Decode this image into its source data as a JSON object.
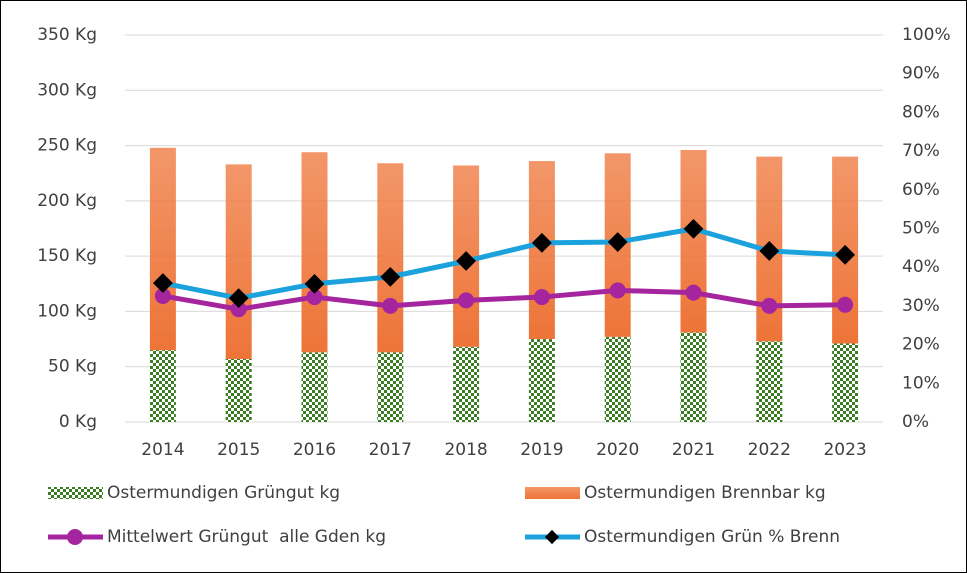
{
  "chart_data": {
    "type": "bar",
    "categories": [
      "2014",
      "2015",
      "2016",
      "2017",
      "2018",
      "2019",
      "2020",
      "2021",
      "2022",
      "2023"
    ],
    "series": [
      {
        "name": "Ostermundigen Grüngut kg",
        "type": "bar",
        "color": "#3a7d22",
        "values": [
          65,
          57,
          63,
          63,
          68,
          75,
          77,
          81,
          73,
          71
        ]
      },
      {
        "name": "Ostermundigen Brennbar kg",
        "type": "bar",
        "color": "#ee7438",
        "values": [
          183,
          176,
          181,
          171,
          164,
          161,
          166,
          165,
          167,
          169
        ]
      },
      {
        "name": "Mittelwert Grüngut  alle Gden kg",
        "type": "line",
        "color": "#a5259f",
        "marker": "circle",
        "values": [
          114,
          102,
          113,
          105,
          110,
          113,
          119,
          117,
          105,
          106
        ]
      },
      {
        "name": "Ostermundigen Grün % Brenn",
        "type": "line",
        "axis": "y2",
        "color": "#1ba1dc",
        "marker": "diamond",
        "values": [
          35.9,
          32,
          35.7,
          37.5,
          41.6,
          46.3,
          46.5,
          49.9,
          44.2,
          43.2
        ]
      }
    ],
    "ylim": [
      0,
      350
    ],
    "yticks": [
      {
        "value": 0,
        "label": "0 Kg"
      },
      {
        "value": 50,
        "label": "50 Kg"
      },
      {
        "value": 100,
        "label": "100 Kg"
      },
      {
        "value": 150,
        "label": "150 Kg"
      },
      {
        "value": 200,
        "label": "200 Kg"
      },
      {
        "value": 250,
        "label": "250 Kg"
      },
      {
        "value": 300,
        "label": "300 Kg"
      },
      {
        "value": 350,
        "label": "350 Kg"
      }
    ],
    "y2lim": [
      0,
      100
    ],
    "y2ticks": [
      {
        "value": 0,
        "label": "0%"
      },
      {
        "value": 10,
        "label": "10%"
      },
      {
        "value": 20,
        "label": "20%"
      },
      {
        "value": 30,
        "label": "30%"
      },
      {
        "value": 40,
        "label": "40%"
      },
      {
        "value": 50,
        "label": "50%"
      },
      {
        "value": 60,
        "label": "60%"
      },
      {
        "value": 70,
        "label": "70%"
      },
      {
        "value": 80,
        "label": "80%"
      },
      {
        "value": 90,
        "label": "90%"
      },
      {
        "value": 100,
        "label": "100%"
      }
    ],
    "grid": true
  }
}
